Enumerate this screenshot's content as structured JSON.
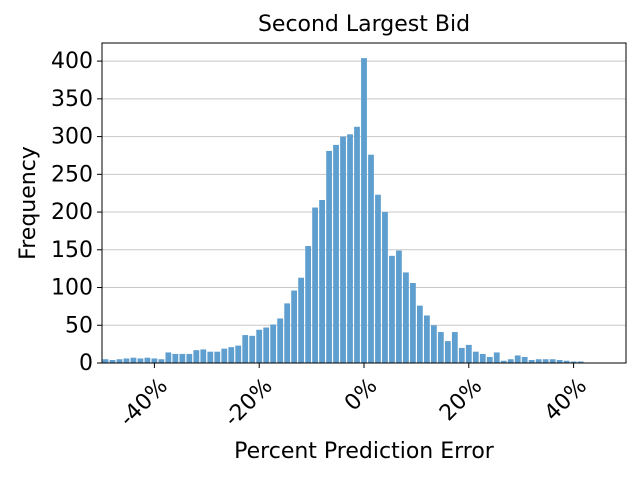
{
  "chart_data": {
    "type": "histogram",
    "title": "Second Largest Bid",
    "x_label": "Percent Prediction Error",
    "y_label": "Frequency",
    "bins": [
      -50,
      -48.67,
      -47.33,
      -46,
      -44.67,
      -43.33,
      -42,
      -40.67,
      -39.33,
      -38,
      -36.67,
      -35.33,
      -34,
      -32.67,
      -31.33,
      -30,
      -28.67,
      -27.33,
      -26,
      -24.67,
      -23.33,
      -22,
      -20.67,
      -19.33,
      -18,
      -16.67,
      -15.33,
      -14,
      -12.67,
      -11.33,
      -10,
      -8.67,
      -7.33,
      -6,
      -4.67,
      -3.33,
      -2,
      -0.67,
      0.67,
      2,
      3.33,
      4.67,
      6,
      7.33,
      8.67,
      10,
      11.33,
      12.67,
      14,
      15.33,
      16.67,
      18,
      19.33,
      20.67,
      22,
      23.33,
      24.67,
      26,
      27.33,
      28.67,
      30,
      31.33,
      32.67,
      34,
      35.33,
      36.67,
      38,
      39.33,
      40.67,
      42,
      43.33,
      44.67,
      46,
      47.33,
      48.67,
      50
    ],
    "values": [
      5,
      4,
      5,
      6,
      7,
      6,
      7,
      6,
      5,
      14,
      12,
      12,
      12,
      17,
      18,
      15,
      15,
      19,
      21,
      23,
      37,
      36,
      44,
      47,
      51,
      59,
      79,
      96,
      113,
      155,
      206,
      216,
      281,
      289,
      300,
      303,
      313,
      404,
      276,
      223,
      200,
      142,
      149,
      120,
      106,
      76,
      63,
      50,
      41,
      29,
      41,
      20,
      24,
      15,
      12,
      8,
      14,
      3,
      5,
      10,
      8,
      4,
      5,
      5,
      5,
      4,
      3,
      2,
      2,
      0,
      0,
      0,
      0,
      0,
      0
    ],
    "color": "#5f9fcf",
    "xlim": [
      -50,
      50
    ],
    "ylim": [
      0,
      424
    ],
    "xticks": [
      {
        "value": -40,
        "label": "-40%"
      },
      {
        "value": -20,
        "label": "-20%"
      },
      {
        "value": 0,
        "label": "0%"
      },
      {
        "value": 20,
        "label": "20%"
      },
      {
        "value": 40,
        "label": "40%"
      }
    ],
    "yticks": [
      0,
      50,
      100,
      150,
      200,
      250,
      300,
      350,
      400
    ],
    "grid": true
  }
}
